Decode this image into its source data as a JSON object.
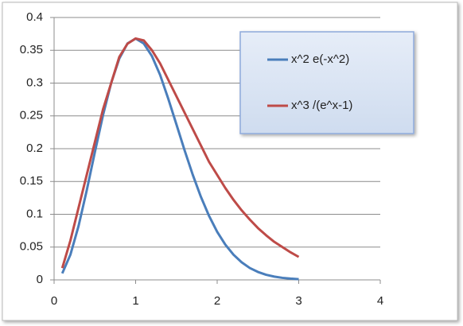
{
  "chart_data": {
    "type": "line",
    "x": [
      0.1,
      0.2,
      0.3,
      0.4,
      0.5,
      0.6,
      0.7,
      0.8,
      0.9,
      1.0,
      1.1,
      1.2,
      1.3,
      1.4,
      1.5,
      1.6,
      1.7,
      1.8,
      1.9,
      2.0,
      2.1,
      2.2,
      2.3,
      2.4,
      2.5,
      2.6,
      2.7,
      2.8,
      2.9,
      3.0
    ],
    "series": [
      {
        "name": "x^2 e(-x^2)",
        "color": "#4a7ebb",
        "values": [
          0.0099,
          0.0384,
          0.0822,
          0.1363,
          0.1947,
          0.2512,
          0.3002,
          0.3375,
          0.3604,
          0.3679,
          0.3603,
          0.3411,
          0.3125,
          0.2762,
          0.2371,
          0.1976,
          0.1604,
          0.1267,
          0.0976,
          0.0733,
          0.0537,
          0.0384,
          0.0268,
          0.0181,
          0.0121,
          0.0078,
          0.005,
          0.0031,
          0.0019,
          0.0011
        ]
      },
      {
        "name": "x^3 /(e^x-1)",
        "color": "#be4b48",
        "values": [
          0.018,
          0.06,
          0.11,
          0.16,
          0.21,
          0.26,
          0.3,
          0.34,
          0.36,
          0.368,
          0.365,
          0.35,
          0.33,
          0.305,
          0.28,
          0.255,
          0.23,
          0.205,
          0.18,
          0.16,
          0.14,
          0.122,
          0.106,
          0.092,
          0.079,
          0.068,
          0.058,
          0.05,
          0.042,
          0.035
        ]
      }
    ],
    "xlim": [
      0,
      4
    ],
    "xticks": [
      0,
      1,
      2,
      3,
      4
    ],
    "ylim": [
      0,
      0.4
    ],
    "yticks": [
      0,
      0.05,
      0.1,
      0.15,
      0.2,
      0.25,
      0.3,
      0.35,
      0.4
    ],
    "grid": true
  }
}
